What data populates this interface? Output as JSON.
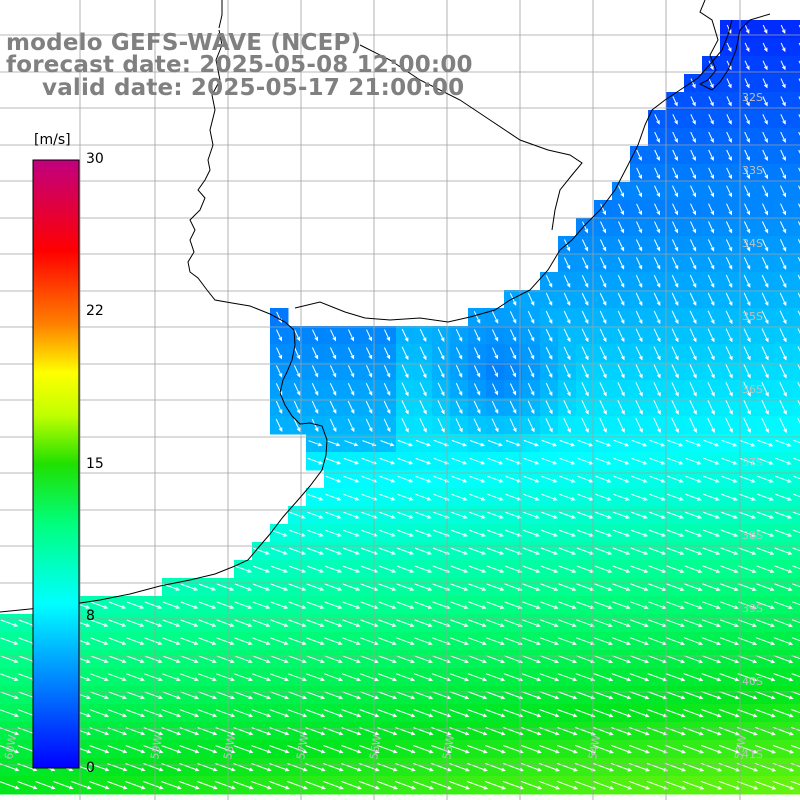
{
  "title": {
    "line1": "modelo GEFS-WAVE (NCEP)",
    "line2": "forecast date: 2025-05-08 12:00:00",
    "line3": "valid date: 2025-05-17 21:00:00"
  },
  "colorbar": {
    "unit": "[m/s]",
    "ticks": [
      "30",
      "22",
      "15",
      "8",
      "0"
    ],
    "tick_values": [
      30,
      22,
      15,
      8,
      0
    ],
    "range": [
      0,
      30
    ],
    "colors": [
      "#0000ff",
      "#00ffff",
      "#00ff00",
      "#ffff00",
      "#ff8000",
      "#ff0000",
      "#c00080"
    ]
  },
  "map": {
    "variable": "wind speed and direction",
    "lat_labels": [
      "32S",
      "33S",
      "34S",
      "35S",
      "36S",
      "37S",
      "38S",
      "39S",
      "40S",
      "41S"
    ],
    "lon_labels": [
      "60W",
      "59W",
      "58W",
      "57W",
      "56W",
      "55W",
      "54W",
      "53W"
    ],
    "land_color": "#ffffff",
    "grid_color": "#a0a0a0",
    "arrow_color": "#ffffff",
    "coast_color": "#000000"
  }
}
